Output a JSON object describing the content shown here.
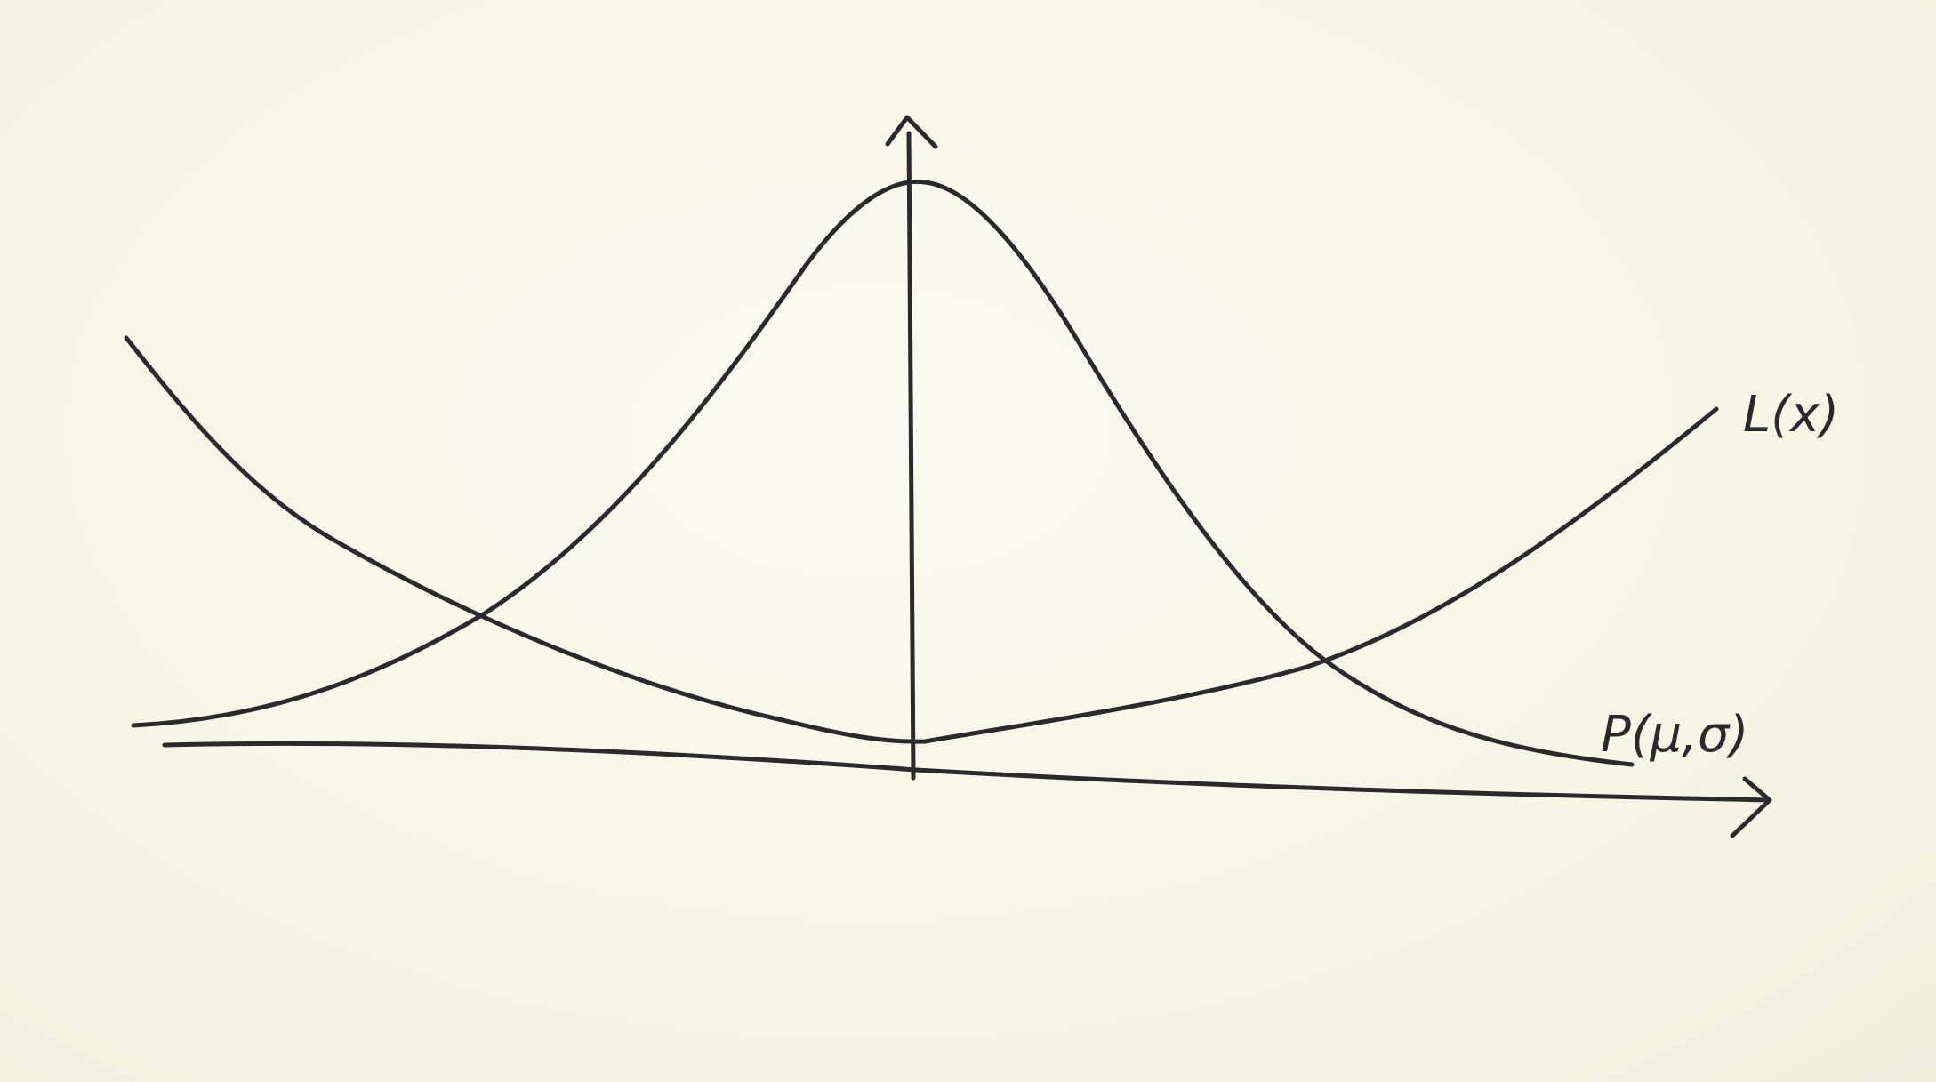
{
  "diagram": {
    "labels": {
      "loss_curve": "L(x)",
      "distribution_curve": "P(μ,σ)"
    },
    "colors": {
      "paper": "#f7f6ea",
      "ink": "#2a2a2a"
    }
  }
}
